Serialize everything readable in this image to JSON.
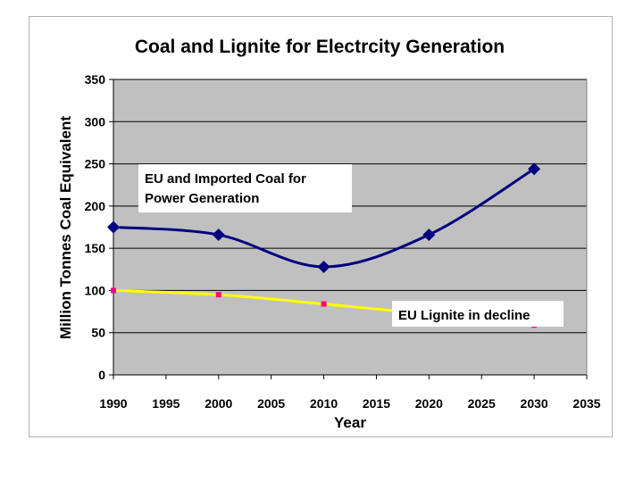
{
  "chart_data": {
    "type": "line",
    "title": "Coal and Lignite for Electrcity Generation",
    "xlabel": "Year",
    "ylabel": "Million Tonnes Coal Equivalent",
    "xlim": [
      1990,
      2035
    ],
    "ylim": [
      0,
      350
    ],
    "x_ticks": [
      1990,
      1995,
      2000,
      2005,
      2010,
      2015,
      2020,
      2025,
      2030,
      2035
    ],
    "y_ticks": [
      0,
      50,
      100,
      150,
      200,
      250,
      300,
      350
    ],
    "grid": true,
    "plot_background": "#c0c0c0",
    "series": [
      {
        "key": "coal",
        "color": "#000080",
        "marker": "diamond",
        "x": [
          1990,
          2000,
          2010,
          2020,
          2030
        ],
        "y": [
          175,
          166,
          128,
          166,
          244
        ]
      },
      {
        "key": "lignite",
        "color": "#ffff00",
        "marker": "square",
        "marker_color": "#ff0080",
        "x": [
          1990,
          2000,
          2010,
          2020,
          2030
        ],
        "y": [
          100,
          95,
          84,
          72,
          59
        ]
      }
    ],
    "annotations": [
      {
        "text_lines": [
          "EU and Imported Coal for",
          "Power Generation"
        ]
      },
      {
        "text_lines": [
          "EU Lignite in decline"
        ]
      }
    ]
  }
}
